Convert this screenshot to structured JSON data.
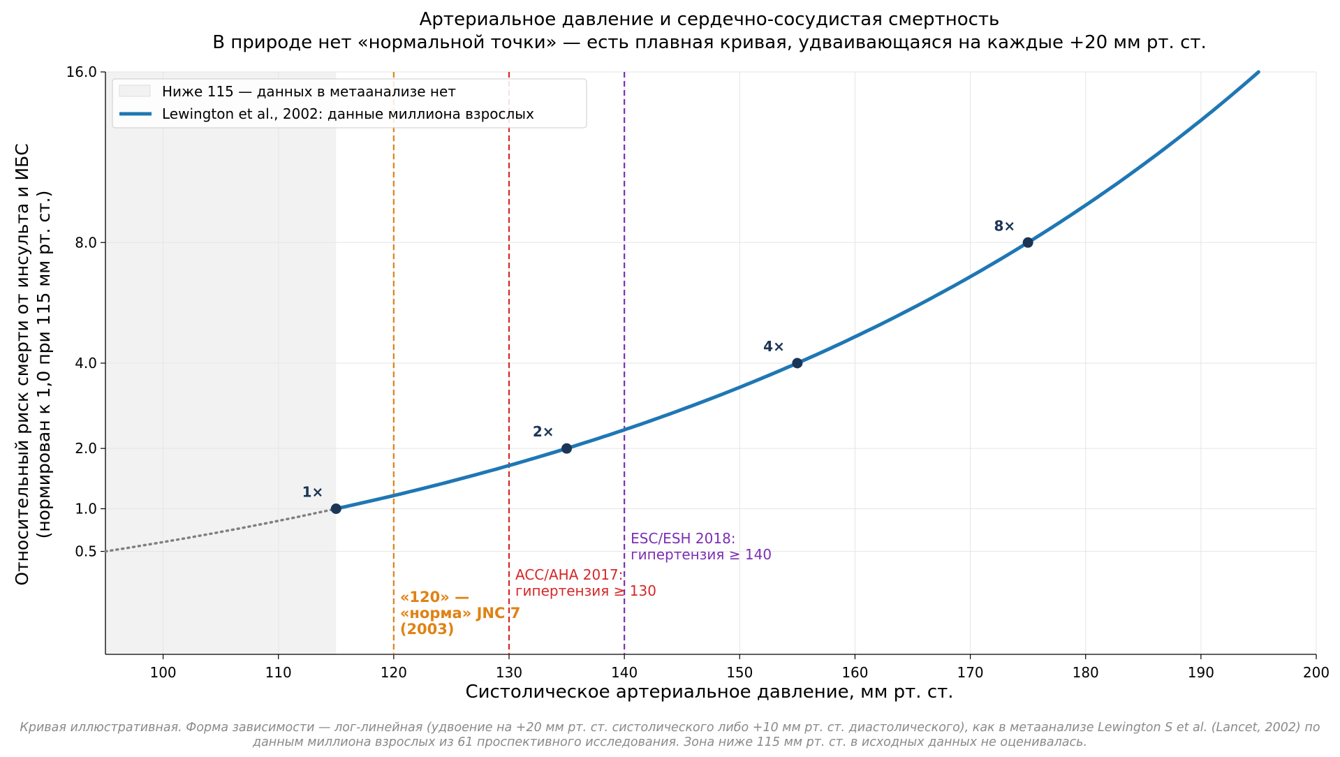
{
  "chart_data": {
    "type": "line",
    "title": "Артериальное давление и сердечно-сосудистая смертность",
    "subtitle": "В природе нет «нормальной точки» — есть плавная кривая, удваивающаяся на каждые +20 мм рт. ст.",
    "xlabel": "Систолическое артериальное давление, мм рт. ст.",
    "ylabel_line1": "Относительный риск смерти от инсульта и ИБС",
    "ylabel_line2": "(нормирован к 1,0 при 115 мм рт. ст.)",
    "xlim": [
      95,
      200
    ],
    "ylim": [
      0,
      16
    ],
    "y_scale": "square-root",
    "grid": true,
    "x_ticks": [
      100,
      110,
      120,
      130,
      140,
      150,
      160,
      170,
      180,
      190,
      200
    ],
    "y_ticks": [
      {
        "value": 0.5,
        "label": "0.5"
      },
      {
        "value": 1.0,
        "label": "1.0"
      },
      {
        "value": 2.0,
        "label": "2.0"
      },
      {
        "value": 4.0,
        "label": "4.0"
      },
      {
        "value": 8.0,
        "label": "8.0"
      },
      {
        "value": 16.0,
        "label": "16.0"
      }
    ],
    "series": [
      {
        "name": "Lewington et al., 2002: данные миллиона взрослых",
        "formula": "risk = 2^((sbp - 115) / 20)",
        "x_range": [
          115,
          195
        ],
        "color": "#1f77b4"
      }
    ],
    "extrapolation": {
      "x_range": [
        95,
        115
      ],
      "style": "dotted",
      "color": "#808080"
    },
    "shaded_region": {
      "x_range": [
        95,
        115
      ],
      "label": "Ниже 115 — данных в метаанализе нет",
      "color": "#f2f2f2"
    },
    "legend": {
      "position": "top-left",
      "entries": [
        "Ниже 115 — данных в метаанализе нет",
        "Lewington et al., 2002: данные миллиона взрослых"
      ]
    },
    "markers": [
      {
        "x": 115,
        "y": 1,
        "label": "1×"
      },
      {
        "x": 135,
        "y": 2,
        "label": "2×"
      },
      {
        "x": 155,
        "y": 4,
        "label": "4×"
      },
      {
        "x": 175,
        "y": 8,
        "label": "8×"
      }
    ],
    "thresholds": [
      {
        "x": 120,
        "color": "#e08214",
        "bold": true,
        "text_lines": [
          "«120» —",
          "«норма» JNC 7",
          "(2003)"
        ]
      },
      {
        "x": 130,
        "color": "#d62728",
        "bold": false,
        "text_lines": [
          "ACC/AHA 2017:",
          "гипертензия ≥ 130"
        ]
      },
      {
        "x": 140,
        "color": "#7b2fb5",
        "bold": false,
        "text_lines": [
          "ESC/ESH 2018:",
          "гипертензия ≥ 140"
        ]
      }
    ],
    "colors": {
      "curve": "#1f77b4",
      "marker": "#1b3556",
      "grid": "#e5e5e5"
    }
  },
  "caption": {
    "line1": "Кривая иллюстративная. Форма зависимости — лог-линейная (удвоение на +20 мм рт. ст. систолического либо +10 мм рт. ст. диастолического), как в метаанализе Lewington S et al. (Lancet, 2002) по",
    "line2": "данным миллиона взрослых из 61 проспективного исследования. Зона ниже 115 мм рт. ст. в исходных данных не оценивалась."
  }
}
